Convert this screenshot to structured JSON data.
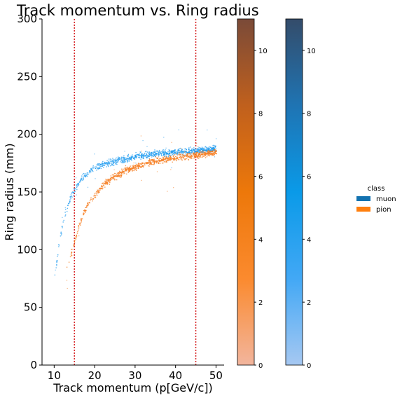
{
  "chart_data": {
    "type": "scatter",
    "title": "Track momentum vs. Ring radius",
    "xlabel": "Track momentum (p[GeV/c])",
    "ylabel": "Ring radius (mm)",
    "xlim": [
      7,
      52
    ],
    "ylim": [
      0,
      300
    ],
    "xticks": [
      10,
      20,
      30,
      40,
      50
    ],
    "yticks": [
      0,
      50,
      100,
      150,
      200,
      250,
      300
    ],
    "grid": false,
    "reference_lines": [
      {
        "axis": "x",
        "value": 15,
        "color": "#d62728",
        "style": "dotted"
      },
      {
        "axis": "x",
        "value": 45,
        "color": "#d62728",
        "style": "dotted"
      }
    ],
    "series": [
      {
        "name": "muon",
        "color": "#1f9bef",
        "x": [
          10,
          11,
          12,
          13,
          14,
          15,
          16,
          17,
          18,
          19,
          20,
          22,
          24,
          26,
          28,
          30,
          32,
          34,
          36,
          38,
          40,
          42,
          44,
          46,
          48,
          50
        ],
        "y": [
          76,
          102,
          122,
          136,
          146,
          153,
          158,
          163,
          166,
          169,
          171,
          174,
          176,
          178,
          179,
          181,
          182,
          183,
          184,
          184,
          185,
          186,
          186,
          187,
          187,
          188
        ]
      },
      {
        "name": "pion",
        "color": "#f57c1f",
        "x": [
          13,
          14,
          15,
          16,
          17,
          18,
          19,
          20,
          22,
          24,
          26,
          28,
          30,
          32,
          34,
          36,
          38,
          40,
          42,
          44,
          46,
          48,
          50
        ],
        "y": [
          85,
          96,
          107,
          120,
          130,
          138,
          144,
          148,
          156,
          162,
          166,
          170,
          172,
          175,
          176,
          178,
          179,
          180,
          181,
          182,
          183,
          184,
          185
        ]
      }
    ],
    "colorbars": [
      {
        "series": "pion",
        "range": [
          0,
          11
        ],
        "ticks": [
          0,
          2,
          4,
          6,
          8,
          10
        ],
        "colors": [
          "#f2b59d",
          "#fb8a2e",
          "#ed780a",
          "#c0601d",
          "#7a4a38"
        ]
      },
      {
        "series": "muon",
        "range": [
          0,
          11
        ],
        "ticks": [
          0,
          2,
          4,
          6,
          8,
          10
        ],
        "colors": [
          "#a6c8f2",
          "#42a8f5",
          "#0a9ae8",
          "#1f74b3",
          "#344c6a"
        ]
      }
    ],
    "legend": {
      "title": "class",
      "placement": "right",
      "entries": [
        {
          "label": "muon",
          "color": "#1272b0"
        },
        {
          "label": "pion",
          "color": "#ff7f0e"
        }
      ]
    }
  }
}
